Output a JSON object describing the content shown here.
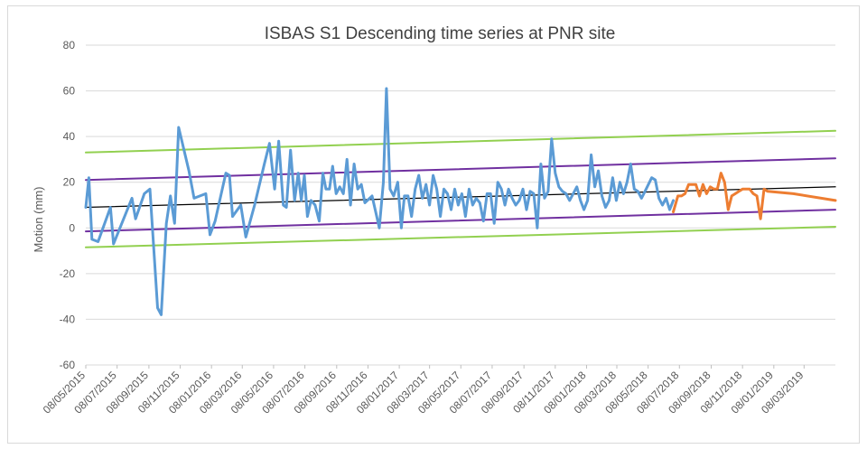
{
  "chart_data": {
    "type": "line",
    "title": "ISBAS S1 Descending time series at PNR site",
    "xlabel": "",
    "ylabel": "Motion (mm)",
    "ylim": [
      -60,
      80
    ],
    "yticks": [
      -60,
      -40,
      -20,
      0,
      20,
      40,
      60,
      80
    ],
    "xlim": [
      "2015-05-08",
      "2019-05-08"
    ],
    "xtick_labels": [
      "08/05/2015",
      "08/07/2015",
      "08/09/2015",
      "08/11/2015",
      "08/01/2016",
      "08/03/2016",
      "08/05/2016",
      "08/07/2016",
      "08/09/2016",
      "08/11/2016",
      "08/01/2017",
      "08/03/2017",
      "08/05/2017",
      "08/07/2017",
      "08/09/2017",
      "08/11/2017",
      "08/01/2018",
      "08/03/2018",
      "08/05/2018",
      "08/07/2018",
      "08/09/2018",
      "08/11/2018",
      "08/01/2019",
      "08/03/2019"
    ],
    "grid": {
      "horizontal": true,
      "vertical": false
    },
    "legend": "none",
    "series": [
      {
        "color": "#5b9bd5",
        "points": [
          [
            "2015-05-08",
            9
          ],
          [
            "2015-05-14",
            22
          ],
          [
            "2015-05-20",
            -5
          ],
          [
            "2015-06-01",
            -6
          ],
          [
            "2015-06-25",
            9
          ],
          [
            "2015-07-01",
            -7
          ],
          [
            "2015-08-06",
            13
          ],
          [
            "2015-08-13",
            4
          ],
          [
            "2015-08-30",
            15
          ],
          [
            "2015-09-10",
            17
          ],
          [
            "2015-09-25",
            -35
          ],
          [
            "2015-10-02",
            -38
          ],
          [
            "2015-10-12",
            2
          ],
          [
            "2015-10-20",
            14
          ],
          [
            "2015-10-28",
            2
          ],
          [
            "2015-11-05",
            44
          ],
          [
            "2015-11-25",
            25
          ],
          [
            "2015-12-05",
            13
          ],
          [
            "2015-12-28",
            15
          ],
          [
            "2016-01-05",
            -3
          ],
          [
            "2016-01-15",
            3
          ],
          [
            "2016-02-05",
            24
          ],
          [
            "2016-02-12",
            23
          ],
          [
            "2016-02-18",
            5
          ],
          [
            "2016-03-05",
            10
          ],
          [
            "2016-03-15",
            -4
          ],
          [
            "2016-04-01",
            10
          ],
          [
            "2016-04-20",
            28
          ],
          [
            "2016-04-30",
            37
          ],
          [
            "2016-05-10",
            17
          ],
          [
            "2016-05-18",
            38
          ],
          [
            "2016-05-27",
            10
          ],
          [
            "2016-06-02",
            9
          ],
          [
            "2016-06-10",
            34
          ],
          [
            "2016-06-18",
            12
          ],
          [
            "2016-06-25",
            24
          ],
          [
            "2016-07-01",
            12
          ],
          [
            "2016-07-07",
            23
          ],
          [
            "2016-07-13",
            5
          ],
          [
            "2016-07-20",
            12
          ],
          [
            "2016-07-28",
            10
          ],
          [
            "2016-08-05",
            3
          ],
          [
            "2016-08-12",
            24
          ],
          [
            "2016-08-18",
            17
          ],
          [
            "2016-08-25",
            17
          ],
          [
            "2016-08-31",
            27
          ],
          [
            "2016-09-07",
            15
          ],
          [
            "2016-09-14",
            18
          ],
          [
            "2016-09-21",
            15
          ],
          [
            "2016-09-28",
            30
          ],
          [
            "2016-10-05",
            10
          ],
          [
            "2016-10-12",
            28
          ],
          [
            "2016-10-19",
            17
          ],
          [
            "2016-10-26",
            19
          ],
          [
            "2016-11-02",
            11
          ],
          [
            "2016-11-16",
            14
          ],
          [
            "2016-11-30",
            0
          ],
          [
            "2016-12-08",
            20
          ],
          [
            "2016-12-14",
            61
          ],
          [
            "2016-12-21",
            17
          ],
          [
            "2016-12-28",
            14
          ],
          [
            "2017-01-05",
            20
          ],
          [
            "2017-01-12",
            0
          ],
          [
            "2017-01-18",
            14
          ],
          [
            "2017-01-25",
            14
          ],
          [
            "2017-02-01",
            5
          ],
          [
            "2017-02-08",
            17
          ],
          [
            "2017-02-15",
            23
          ],
          [
            "2017-02-22",
            13
          ],
          [
            "2017-03-01",
            19
          ],
          [
            "2017-03-08",
            10
          ],
          [
            "2017-03-15",
            23
          ],
          [
            "2017-03-22",
            17
          ],
          [
            "2017-03-29",
            5
          ],
          [
            "2017-04-05",
            17
          ],
          [
            "2017-04-12",
            15
          ],
          [
            "2017-04-19",
            8
          ],
          [
            "2017-04-26",
            17
          ],
          [
            "2017-05-03",
            10
          ],
          [
            "2017-05-10",
            15
          ],
          [
            "2017-05-17",
            5
          ],
          [
            "2017-05-24",
            17
          ],
          [
            "2017-05-31",
            10
          ],
          [
            "2017-06-07",
            13
          ],
          [
            "2017-06-14",
            11
          ],
          [
            "2017-06-21",
            3
          ],
          [
            "2017-06-28",
            15
          ],
          [
            "2017-07-05",
            15
          ],
          [
            "2017-07-12",
            2
          ],
          [
            "2017-07-19",
            20
          ],
          [
            "2017-07-26",
            17
          ],
          [
            "2017-08-02",
            10
          ],
          [
            "2017-08-09",
            17
          ],
          [
            "2017-08-16",
            13
          ],
          [
            "2017-08-23",
            10
          ],
          [
            "2017-08-30",
            12
          ],
          [
            "2017-09-06",
            17
          ],
          [
            "2017-09-13",
            8
          ],
          [
            "2017-09-20",
            16
          ],
          [
            "2017-09-27",
            15
          ],
          [
            "2017-10-04",
            0
          ],
          [
            "2017-10-11",
            28
          ],
          [
            "2017-10-18",
            13
          ],
          [
            "2017-10-25",
            16
          ],
          [
            "2017-11-01",
            39
          ],
          [
            "2017-11-08",
            24
          ],
          [
            "2017-11-15",
            18
          ],
          [
            "2017-11-22",
            16
          ],
          [
            "2017-11-29",
            15
          ],
          [
            "2017-12-06",
            12
          ],
          [
            "2017-12-13",
            15
          ],
          [
            "2017-12-20",
            18
          ],
          [
            "2017-12-27",
            12
          ],
          [
            "2018-01-03",
            8
          ],
          [
            "2018-01-10",
            12
          ],
          [
            "2018-01-17",
            32
          ],
          [
            "2018-01-24",
            18
          ],
          [
            "2018-01-31",
            25
          ],
          [
            "2018-02-07",
            14
          ],
          [
            "2018-02-14",
            9
          ],
          [
            "2018-02-21",
            12
          ],
          [
            "2018-02-28",
            22
          ],
          [
            "2018-03-07",
            12
          ],
          [
            "2018-03-14",
            20
          ],
          [
            "2018-03-21",
            15
          ],
          [
            "2018-03-28",
            20
          ],
          [
            "2018-04-04",
            28
          ],
          [
            "2018-04-11",
            17
          ],
          [
            "2018-04-18",
            16
          ],
          [
            "2018-04-25",
            13
          ],
          [
            "2018-05-02",
            16
          ],
          [
            "2018-05-15",
            22
          ],
          [
            "2018-05-22",
            21
          ],
          [
            "2018-05-29",
            13
          ],
          [
            "2018-06-05",
            10
          ],
          [
            "2018-06-12",
            13
          ],
          [
            "2018-06-19",
            8
          ],
          [
            "2018-06-26",
            12
          ]
        ]
      },
      {
        "color": "#ed7d31",
        "points": [
          [
            "2018-06-26",
            7
          ],
          [
            "2018-07-05",
            14
          ],
          [
            "2018-07-12",
            14
          ],
          [
            "2018-07-19",
            15
          ],
          [
            "2018-07-26",
            19
          ],
          [
            "2018-08-02",
            19
          ],
          [
            "2018-08-09",
            19
          ],
          [
            "2018-08-16",
            14
          ],
          [
            "2018-08-23",
            19
          ],
          [
            "2018-08-30",
            15
          ],
          [
            "2018-09-06",
            18
          ],
          [
            "2018-09-13",
            17
          ],
          [
            "2018-09-20",
            17
          ],
          [
            "2018-09-27",
            24
          ],
          [
            "2018-10-04",
            20
          ],
          [
            "2018-10-11",
            8
          ],
          [
            "2018-10-18",
            14
          ],
          [
            "2018-10-25",
            15
          ],
          [
            "2018-11-01",
            16
          ],
          [
            "2018-11-08",
            17
          ],
          [
            "2018-11-15",
            17
          ],
          [
            "2018-11-22",
            17
          ],
          [
            "2018-11-29",
            15
          ],
          [
            "2018-12-06",
            14
          ],
          [
            "2018-12-13",
            4
          ],
          [
            "2018-12-20",
            17
          ],
          [
            "2018-12-27",
            16
          ],
          [
            "2019-02-15",
            15
          ],
          [
            "2019-05-08",
            12
          ]
        ]
      },
      {
        "color": "#000000",
        "points": [
          [
            "2015-05-08",
            9
          ],
          [
            "2019-05-08",
            18
          ]
        ]
      },
      {
        "color": "#7030a0",
        "points": [
          [
            "2015-05-08",
            21
          ],
          [
            "2019-05-08",
            30.5
          ]
        ]
      },
      {
        "color": "#7030a0",
        "points": [
          [
            "2015-05-08",
            -1.5
          ],
          [
            "2019-05-08",
            8
          ]
        ]
      },
      {
        "color": "#92d050",
        "points": [
          [
            "2015-05-08",
            33
          ],
          [
            "2019-05-08",
            42.5
          ]
        ]
      },
      {
        "color": "#92d050",
        "points": [
          [
            "2015-05-08",
            -8.5
          ],
          [
            "2019-05-08",
            0.5
          ]
        ]
      }
    ]
  }
}
